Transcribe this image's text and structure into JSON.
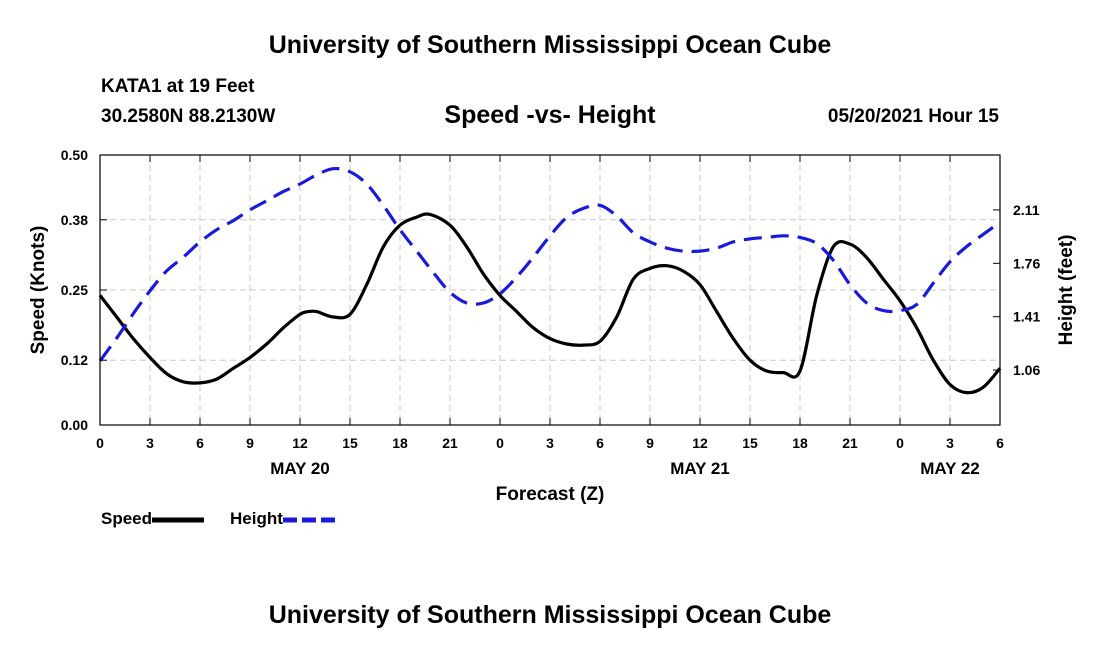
{
  "header": {
    "title": "University of Southern Mississippi Ocean Cube",
    "station": "KATA1 at 19 Feet",
    "coords": "30.2580N  88.2130W",
    "chart_title": "Speed -vs- Height",
    "datetime": "05/20/2021 Hour 15"
  },
  "footer": {
    "title": "University of Southern Mississippi Ocean Cube"
  },
  "legend": {
    "speed_label": "Speed",
    "height_label": "Height",
    "speed_color": "#000000",
    "height_color": "#1a1adb"
  },
  "chart_data": {
    "type": "line",
    "title": "Speed -vs- Height",
    "xlabel": "Forecast (Z)",
    "ylabel": "Speed (Knots)",
    "y2label": "Height (feet)",
    "xlim": [
      0,
      54
    ],
    "ylim": [
      0,
      0.5
    ],
    "y2lim": [
      0.7,
      2.47
    ],
    "grid": true,
    "x_ticks": [
      0,
      3,
      6,
      9,
      12,
      15,
      18,
      21,
      24,
      27,
      30,
      33,
      36,
      39,
      42,
      45,
      48,
      51,
      54
    ],
    "x_tick_labels": [
      "0",
      "3",
      "6",
      "9",
      "12",
      "15",
      "18",
      "21",
      "0",
      "3",
      "6",
      "9",
      "12",
      "15",
      "18",
      "21",
      "0",
      "3",
      "6"
    ],
    "date_labels": [
      {
        "x": 12,
        "label": "MAY 20"
      },
      {
        "x": 36,
        "label": "MAY 21"
      },
      {
        "x": 51,
        "label": "MAY 22"
      }
    ],
    "y_ticks": [
      0.0,
      0.12,
      0.25,
      0.38,
      0.5
    ],
    "y_tick_labels": [
      "0.00",
      "0.12",
      "0.25",
      "0.38",
      "0.50"
    ],
    "y2_ticks": [
      1.06,
      1.41,
      1.76,
      2.11
    ],
    "y2_tick_labels": [
      "1.06",
      "1.41",
      "1.76",
      "2.11"
    ],
    "series": [
      {
        "name": "Speed",
        "axis": "left",
        "style": "solid",
        "color": "#000000",
        "x": [
          0,
          1,
          2,
          3,
          4,
          5,
          6,
          7,
          8,
          9,
          10,
          11,
          12,
          12.5,
          13,
          14,
          15,
          16,
          17,
          18,
          19,
          19.8,
          21,
          22,
          23,
          24,
          25,
          26,
          27,
          28,
          29,
          30,
          31,
          32,
          33,
          34,
          35,
          36,
          37,
          38,
          39,
          40,
          41,
          42,
          43,
          44,
          45,
          46,
          47,
          48,
          49,
          50,
          51,
          52,
          53,
          54
        ],
        "values": [
          0.24,
          0.2,
          0.16,
          0.125,
          0.095,
          0.08,
          0.078,
          0.085,
          0.105,
          0.125,
          0.15,
          0.18,
          0.205,
          0.21,
          0.21,
          0.2,
          0.205,
          0.26,
          0.33,
          0.37,
          0.385,
          0.39,
          0.37,
          0.33,
          0.28,
          0.24,
          0.21,
          0.18,
          0.16,
          0.15,
          0.148,
          0.155,
          0.2,
          0.27,
          0.29,
          0.295,
          0.285,
          0.26,
          0.21,
          0.16,
          0.12,
          0.1,
          0.097,
          0.1,
          0.24,
          0.33,
          0.335,
          0.31,
          0.27,
          0.23,
          0.18,
          0.12,
          0.075,
          0.06,
          0.07,
          0.105
        ]
      },
      {
        "name": "Height",
        "axis": "right",
        "style": "dashed",
        "color": "#1a1adb",
        "x": [
          0,
          1,
          2,
          3,
          4,
          5,
          6,
          7,
          8,
          9,
          10,
          11,
          12,
          13,
          14,
          15,
          16,
          17,
          18,
          19,
          20,
          21,
          22,
          23,
          24,
          25,
          26,
          27,
          28,
          29,
          30,
          31,
          32,
          33,
          34,
          35,
          36,
          37,
          38,
          39,
          40,
          41,
          42,
          43,
          44,
          45,
          46,
          47,
          48,
          49,
          50,
          51,
          52,
          53,
          54
        ],
        "values": [
          1.12,
          1.27,
          1.43,
          1.58,
          1.71,
          1.8,
          1.9,
          1.98,
          2.04,
          2.11,
          2.17,
          2.23,
          2.28,
          2.34,
          2.38,
          2.36,
          2.28,
          2.14,
          1.98,
          1.84,
          1.7,
          1.57,
          1.5,
          1.5,
          1.56,
          1.67,
          1.8,
          1.94,
          2.06,
          2.12,
          2.14,
          2.07,
          1.96,
          1.9,
          1.86,
          1.84,
          1.84,
          1.86,
          1.9,
          1.92,
          1.93,
          1.94,
          1.93,
          1.89,
          1.78,
          1.62,
          1.5,
          1.45,
          1.45,
          1.49,
          1.63,
          1.77,
          1.87,
          1.95,
          2.03
        ]
      }
    ]
  }
}
